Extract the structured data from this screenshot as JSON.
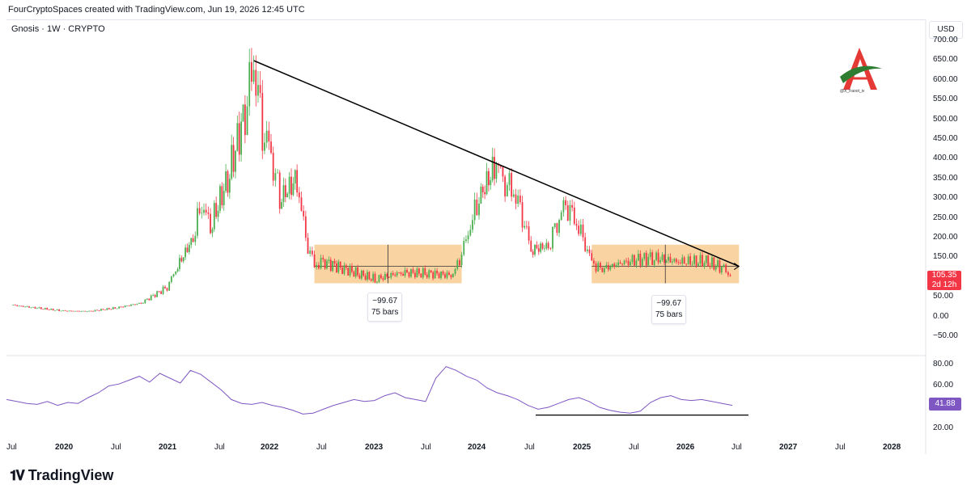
{
  "header": {
    "credit": "FourCryptoSpaces created with TradingView.com, Jun 19, 2026 12:45 UTC"
  },
  "symbol": {
    "label": "Gnosis · 1W · CRYPTO"
  },
  "price_axis": {
    "currency": "USD",
    "ticks": [
      "700.00",
      "650.00",
      "600.00",
      "550.00",
      "500.00",
      "450.00",
      "400.00",
      "350.00",
      "300.00",
      "250.00",
      "200.00",
      "150.00",
      "100.00",
      "50.00",
      "0.00",
      "−50.00"
    ],
    "last_price": "105.35",
    "countdown": "2d 12h"
  },
  "rsi_axis": {
    "ticks": [
      "80.00",
      "60.00",
      "20.00"
    ],
    "last_value": "41.88"
  },
  "time_axis": {
    "labels": [
      {
        "text": "Jul",
        "year": false
      },
      {
        "text": "2020",
        "year": true
      },
      {
        "text": "Jul",
        "year": false
      },
      {
        "text": "2021",
        "year": true
      },
      {
        "text": "Jul",
        "year": false
      },
      {
        "text": "2022",
        "year": true
      },
      {
        "text": "Jul",
        "year": false
      },
      {
        "text": "2023",
        "year": true
      },
      {
        "text": "Jul",
        "year": false
      },
      {
        "text": "2024",
        "year": true
      },
      {
        "text": "Jul",
        "year": false
      },
      {
        "text": "2025",
        "year": true
      },
      {
        "text": "Jul",
        "year": false
      },
      {
        "text": "2026",
        "year": true
      },
      {
        "text": "Jul",
        "year": false
      },
      {
        "text": "2027",
        "year": true
      },
      {
        "text": "Jul",
        "year": false
      },
      {
        "text": "2028",
        "year": true
      }
    ]
  },
  "measure_boxes": [
    {
      "value": "−99.67",
      "bars": "75 bars"
    },
    {
      "value": "−99.67",
      "bars": "75 bars"
    }
  ],
  "watermark": {
    "handle": "@X_Faoot_iv"
  },
  "brand": {
    "name": "TradingView"
  },
  "colors": {
    "up": "#22ab94",
    "up_candle": "#4caf50",
    "down": "#f23645",
    "rsi": "#7e57c2",
    "range_box": "#f7c27a",
    "trendline": "#000000"
  },
  "chart_data": {
    "type": "candlestick",
    "title": "Gnosis · 1W · CRYPTO",
    "xlabel": "",
    "ylabel": "USD",
    "ylim": [
      -50,
      700
    ],
    "series": [
      {
        "name": "Gnosis",
        "points": [
          [
            "2019-07",
            30
          ],
          [
            "2019-10",
            22
          ],
          [
            "2020-01",
            15
          ],
          [
            "2020-04",
            14
          ],
          [
            "2020-07",
            22
          ],
          [
            "2020-10",
            35
          ],
          [
            "2021-01",
            75
          ],
          [
            "2021-02",
            120
          ],
          [
            "2021-04",
            200
          ],
          [
            "2021-05",
            290
          ],
          [
            "2021-06",
            230
          ],
          [
            "2021-08",
            350
          ],
          [
            "2021-10",
            520
          ],
          [
            "2021-11",
            650
          ],
          [
            "2021-12",
            480
          ],
          [
            "2022-01",
            420
          ],
          [
            "2022-02",
            300
          ],
          [
            "2022-04",
            350
          ],
          [
            "2022-05",
            200
          ],
          [
            "2022-06",
            130
          ],
          [
            "2022-07",
            140
          ],
          [
            "2022-09",
            125
          ],
          [
            "2022-11",
            110
          ],
          [
            "2023-01",
            95
          ],
          [
            "2023-04",
            112
          ],
          [
            "2023-07",
            110
          ],
          [
            "2023-10",
            105
          ],
          [
            "2023-11",
            160
          ],
          [
            "2023-12",
            230
          ],
          [
            "2024-01",
            300
          ],
          [
            "2024-03",
            390
          ],
          [
            "2024-04",
            340
          ],
          [
            "2024-05",
            320
          ],
          [
            "2024-06",
            260
          ],
          [
            "2024-07",
            170
          ],
          [
            "2024-09",
            180
          ],
          [
            "2024-10",
            240
          ],
          [
            "2024-11",
            290
          ],
          [
            "2024-12",
            250
          ],
          [
            "2025-01",
            200
          ],
          [
            "2025-02",
            140
          ],
          [
            "2025-03",
            120
          ],
          [
            "2025-06",
            140
          ],
          [
            "2025-09",
            150
          ],
          [
            "2025-12",
            140
          ],
          [
            "2026-03",
            140
          ],
          [
            "2026-05",
            125
          ],
          [
            "2026-06",
            105
          ]
        ]
      }
    ],
    "trendline": {
      "from": [
        "2021-11",
        650
      ],
      "to": [
        "2026-07",
        128
      ]
    },
    "ranges": [
      {
        "from": "2022-06",
        "to": "2023-11",
        "high": 183,
        "low": 85,
        "change": -99.67,
        "bars": 75
      },
      {
        "from": "2025-02",
        "to": "2026-07",
        "high": 183,
        "low": 85,
        "change": -99.67,
        "bars": 75
      }
    ],
    "rsi": {
      "ylim": [
        20,
        85
      ],
      "values": [
        48,
        46,
        44,
        43,
        46,
        42,
        45,
        44,
        50,
        55,
        62,
        64,
        68,
        72,
        66,
        75,
        70,
        65,
        78,
        74,
        66,
        58,
        48,
        44,
        43,
        45,
        42,
        40,
        37,
        33,
        34,
        38,
        42,
        45,
        48,
        46,
        47,
        52,
        55,
        50,
        48,
        46,
        70,
        82,
        78,
        72,
        68,
        60,
        55,
        52,
        48,
        42,
        38,
        40,
        44,
        48,
        50,
        46,
        40,
        37,
        35,
        34,
        36,
        45,
        50,
        52,
        48,
        47,
        48,
        46,
        44,
        42
      ],
      "last": 41.88,
      "support_level": 32
    }
  }
}
